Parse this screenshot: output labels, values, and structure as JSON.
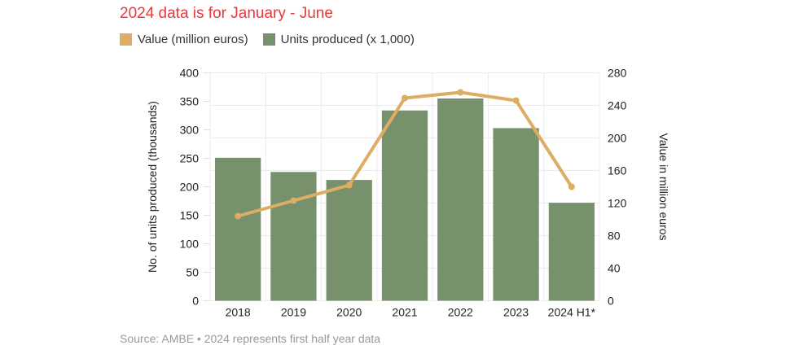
{
  "title": "2024 data is for January - June",
  "source": "Source: AMBE • 2024 represents first half year data",
  "colors": {
    "bar": "#76916b",
    "line": "#dcad62",
    "title": "#e8393d"
  },
  "chart_data": {
    "type": "bar",
    "categories": [
      "2018",
      "2019",
      "2020",
      "2021",
      "2022",
      "2023",
      "2024 H1*"
    ],
    "series": [
      {
        "name": "Units produced (x 1,000)",
        "type": "bar",
        "axis": "left",
        "values": [
          251,
          226,
          212,
          334,
          355,
          303,
          172
        ]
      },
      {
        "name": "Value (million euros)",
        "type": "line",
        "axis": "right",
        "values": [
          104,
          123,
          142,
          249,
          256,
          246,
          140
        ]
      }
    ],
    "legend": [
      "Value (million euros)",
      "Units produced (x 1,000)"
    ],
    "ylabel": "No. of units produced (thousands)",
    "y2label": "Value in million euros",
    "ylim": [
      0,
      400
    ],
    "y2lim": [
      0,
      280
    ],
    "yticks": [
      0,
      50,
      100,
      150,
      200,
      250,
      300,
      350,
      400
    ],
    "y2ticks": [
      0,
      40,
      80,
      120,
      160,
      200,
      240,
      280
    ],
    "grid": true
  }
}
